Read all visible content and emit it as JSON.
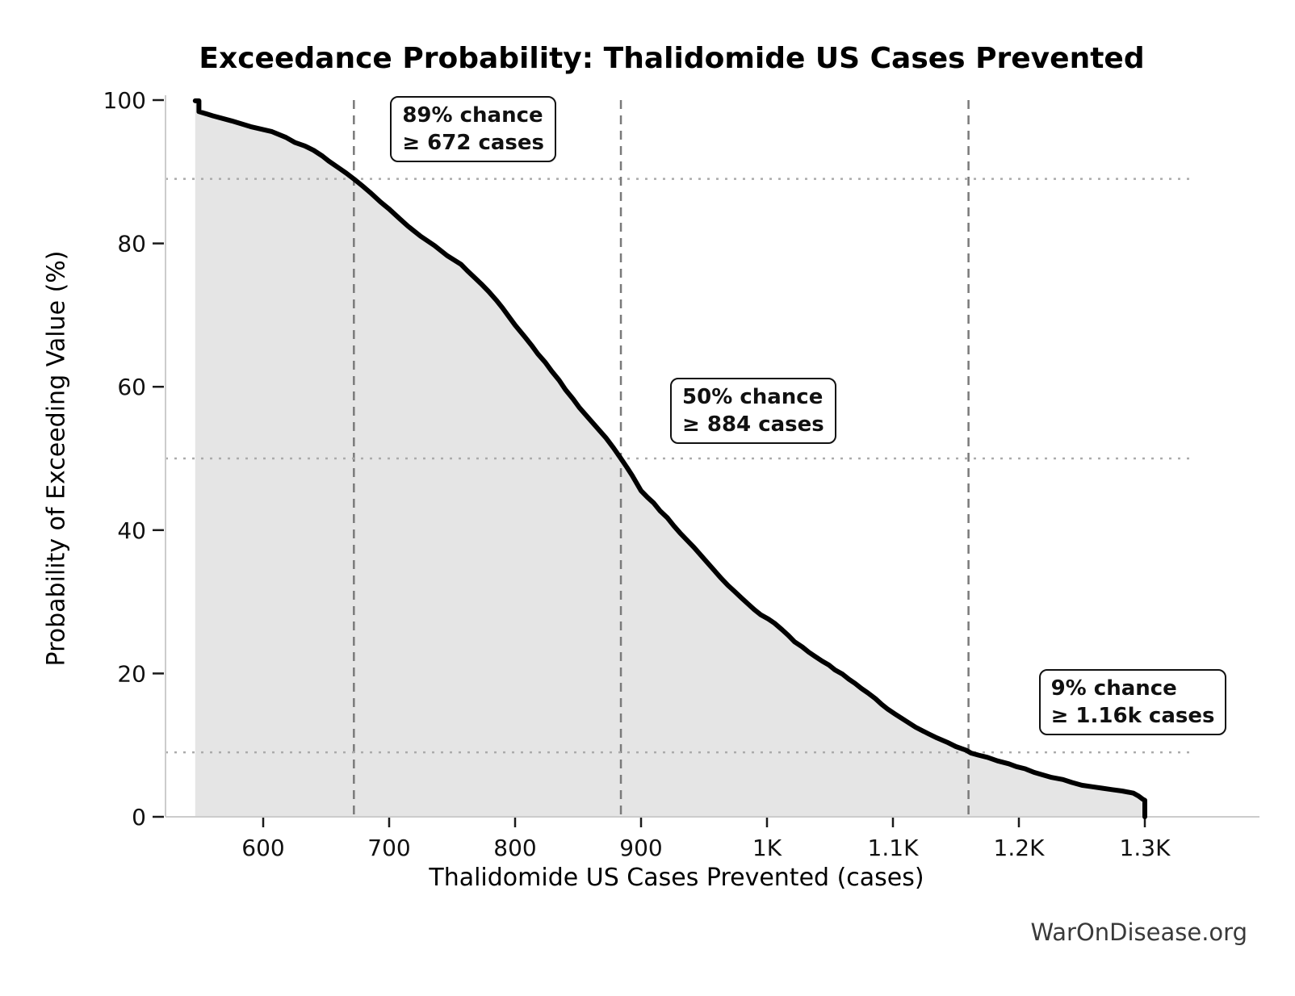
{
  "title": "Exceedance Probability: Thalidomide US Cases Prevented",
  "watermark": "WarOnDisease.org",
  "chart_data": {
    "type": "line",
    "title": "Exceedance Probability: Thalidomide US Cases Prevented",
    "xlabel": "Thalidomide US Cases Prevented (cases)",
    "ylabel": "Probability of Exceeding Value (%)",
    "xlim": [
      522,
      1340
    ],
    "ylim": [
      0,
      100
    ],
    "grid": "dotted horizontal reference lines at annotated probabilities; dashed vertical reference lines at annotated case thresholds",
    "legend": "none",
    "x_ticks": {
      "values": [
        600,
        700,
        800,
        900,
        1000,
        1100,
        1200,
        1300
      ],
      "labels": [
        "600",
        "700",
        "800",
        "900",
        "1K",
        "1.1K",
        "1.2K",
        "1.3K"
      ]
    },
    "y_ticks": {
      "values": [
        0,
        20,
        40,
        60,
        80,
        100
      ],
      "labels": [
        "0",
        "20",
        "40",
        "60",
        "80",
        "100"
      ]
    },
    "series": [
      {
        "name": "exceedance-curve",
        "color": "#000000",
        "fill_color": "#e5e5e5",
        "points": [
          [
            546,
            99.9
          ],
          [
            549,
            99.9
          ],
          [
            549,
            98.4
          ],
          [
            560,
            97.8
          ],
          [
            575,
            97.1
          ],
          [
            590,
            96.3
          ],
          [
            607,
            95.6
          ],
          [
            618,
            94.8
          ],
          [
            625,
            94.1
          ],
          [
            633,
            93.6
          ],
          [
            640,
            93.0
          ],
          [
            647,
            92.2
          ],
          [
            652,
            91.5
          ],
          [
            661,
            90.4
          ],
          [
            666,
            89.8
          ],
          [
            672,
            89.0
          ],
          [
            679,
            88.0
          ],
          [
            685,
            87.1
          ],
          [
            693,
            85.8
          ],
          [
            700,
            84.8
          ],
          [
            708,
            83.5
          ],
          [
            715,
            82.4
          ],
          [
            725,
            81.0
          ],
          [
            736,
            79.7
          ],
          [
            746,
            78.3
          ],
          [
            757,
            77.1
          ],
          [
            762,
            76.2
          ],
          [
            768,
            75.2
          ],
          [
            774,
            74.2
          ],
          [
            779,
            73.3
          ],
          [
            785,
            72.1
          ],
          [
            790,
            71.0
          ],
          [
            795,
            69.8
          ],
          [
            800,
            68.6
          ],
          [
            808,
            66.9
          ],
          [
            813,
            65.8
          ],
          [
            818,
            64.6
          ],
          [
            824,
            63.4
          ],
          [
            829,
            62.2
          ],
          [
            835,
            60.9
          ],
          [
            840,
            59.6
          ],
          [
            846,
            58.3
          ],
          [
            851,
            57.1
          ],
          [
            857,
            55.9
          ],
          [
            862,
            54.9
          ],
          [
            867,
            53.9
          ],
          [
            872,
            52.9
          ],
          [
            878,
            51.5
          ],
          [
            884,
            50.0
          ],
          [
            889,
            48.7
          ],
          [
            893,
            47.6
          ],
          [
            900,
            45.5
          ],
          [
            905,
            44.6
          ],
          [
            910,
            43.8
          ],
          [
            915,
            42.7
          ],
          [
            921,
            41.7
          ],
          [
            926,
            40.6
          ],
          [
            931,
            39.6
          ],
          [
            937,
            38.5
          ],
          [
            942,
            37.6
          ],
          [
            947,
            36.6
          ],
          [
            952,
            35.6
          ],
          [
            958,
            34.4
          ],
          [
            963,
            33.4
          ],
          [
            969,
            32.3
          ],
          [
            974,
            31.5
          ],
          [
            980,
            30.5
          ],
          [
            985,
            29.7
          ],
          [
            990,
            28.9
          ],
          [
            995,
            28.2
          ],
          [
            1001,
            27.6
          ],
          [
            1006,
            27.0
          ],
          [
            1012,
            26.1
          ],
          [
            1017,
            25.3
          ],
          [
            1022,
            24.4
          ],
          [
            1028,
            23.7
          ],
          [
            1033,
            23.0
          ],
          [
            1038,
            22.4
          ],
          [
            1044,
            21.7
          ],
          [
            1049,
            21.2
          ],
          [
            1054,
            20.5
          ],
          [
            1060,
            19.9
          ],
          [
            1065,
            19.2
          ],
          [
            1070,
            18.6
          ],
          [
            1075,
            17.9
          ],
          [
            1080,
            17.3
          ],
          [
            1086,
            16.5
          ],
          [
            1091,
            15.7
          ],
          [
            1096,
            15.0
          ],
          [
            1102,
            14.3
          ],
          [
            1110,
            13.4
          ],
          [
            1118,
            12.5
          ],
          [
            1128,
            11.6
          ],
          [
            1135,
            11.0
          ],
          [
            1143,
            10.4
          ],
          [
            1150,
            9.8
          ],
          [
            1158,
            9.3
          ],
          [
            1162,
            8.9
          ],
          [
            1168,
            8.6
          ],
          [
            1175,
            8.3
          ],
          [
            1183,
            7.8
          ],
          [
            1192,
            7.4
          ],
          [
            1198,
            7.0
          ],
          [
            1205,
            6.7
          ],
          [
            1212,
            6.2
          ],
          [
            1218,
            5.9
          ],
          [
            1226,
            5.5
          ],
          [
            1235,
            5.2
          ],
          [
            1242,
            4.8
          ],
          [
            1250,
            4.4
          ],
          [
            1258,
            4.2
          ],
          [
            1266,
            4.0
          ],
          [
            1274,
            3.8
          ],
          [
            1282,
            3.6
          ],
          [
            1291,
            3.3
          ],
          [
            1295,
            2.9
          ],
          [
            1298,
            2.5
          ],
          [
            1300,
            2.3
          ],
          [
            1300,
            0
          ]
        ]
      }
    ],
    "annotations": [
      {
        "chance_percent": 89,
        "threshold_cases": 672,
        "line1": "89% chance",
        "line2": "≥ 672 cases"
      },
      {
        "chance_percent": 50,
        "threshold_cases": 884,
        "line1": "50% chance",
        "line2": "≥ 884 cases"
      },
      {
        "chance_percent": 9,
        "threshold_cases": 1160,
        "line1": "9% chance",
        "line2": "≥ 1.16k cases"
      }
    ],
    "colors": {
      "curve": "#000000",
      "fill": "#e5e5e5",
      "dashed_vline": "#7a7a7a",
      "dotted_hline": "#ababab",
      "spine": "#cccccc",
      "tick_mark": "#1a1a1a",
      "text": "#000000",
      "watermark": "#3a3a3a",
      "annotation_border": "#111111",
      "annotation_bg": "#ffffff"
    }
  }
}
